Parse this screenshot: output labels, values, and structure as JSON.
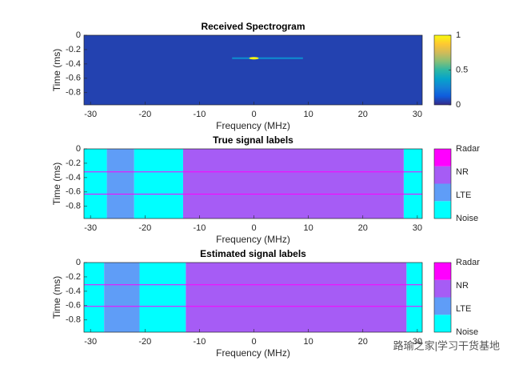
{
  "chart_data": [
    {
      "type": "spectrogram",
      "title": "Received Spectrogram",
      "xlabel": "Frequency (MHz)",
      "ylabel": "Time (ms)",
      "xlim": [
        -31.2,
        30.9
      ],
      "xticks": [
        -30,
        -20,
        -10,
        0,
        10,
        20,
        30
      ],
      "ylim": [
        0,
        -0.97
      ],
      "yticks": [
        0,
        -0.2,
        -0.4,
        -0.6,
        -0.8
      ],
      "zlim": [
        0,
        1
      ],
      "zticks": [
        0,
        0.5,
        1
      ],
      "colormap": [
        "#352a87",
        "#0f5cdd",
        "#1481d6",
        "#06a4ca",
        "#2eb7a4",
        "#87bf77",
        "#d1bb59",
        "#fec832",
        "#f9fb0e"
      ],
      "floor": 0.06,
      "streaks": [
        {
          "x": [
            -4,
            9
          ],
          "y": -0.32,
          "z": 0.3
        }
      ],
      "peaks": [
        {
          "x": 0,
          "y": -0.32,
          "z": 1
        }
      ]
    },
    {
      "type": "label_map",
      "title": "True signal labels",
      "xlabel": "Frequency (MHz)",
      "ylabel": "Time (ms)",
      "xlim": [
        -31.2,
        30.9
      ],
      "xticks": [
        -30,
        -20,
        -10,
        0,
        10,
        20,
        30
      ],
      "ylim": [
        0,
        -0.97
      ],
      "yticks": [
        0,
        -0.2,
        -0.4,
        -0.6,
        -0.8
      ],
      "series": [
        {
          "name": "Noise",
          "color": "#00ffff",
          "spans": [
            [
              -31.2,
              -27
            ],
            [
              -22,
              -13
            ],
            [
              27.5,
              30.9
            ]
          ]
        },
        {
          "name": "LTE",
          "color": "#5f9df7",
          "spans": [
            [
              -27,
              -22
            ]
          ]
        },
        {
          "name": "NR",
          "color": "#a65cf5",
          "spans": [
            [
              -13,
              27.5
            ]
          ]
        },
        {
          "name": "Radar",
          "color": "#ff00ff",
          "spans": [],
          "hlines": [
            -0.32,
            -0.63
          ]
        }
      ]
    },
    {
      "type": "label_map",
      "title": "Estimated signal labels",
      "xlabel": "Frequency (MHz)",
      "ylabel": "Time (ms)",
      "xlim": [
        -31.2,
        30.9
      ],
      "xticks": [
        -30,
        -20,
        -10,
        0,
        10,
        20,
        30
      ],
      "ylim": [
        0,
        -0.97
      ],
      "yticks": [
        0,
        -0.2,
        -0.4,
        -0.6,
        -0.8
      ],
      "series": [
        {
          "name": "Noise",
          "color": "#00ffff",
          "spans": [
            [
              -31.2,
              -27.5
            ],
            [
              -21,
              -12.5
            ],
            [
              28,
              30.9
            ]
          ]
        },
        {
          "name": "LTE",
          "color": "#5f9df7",
          "spans": [
            [
              -27.5,
              -21
            ]
          ]
        },
        {
          "name": "NR",
          "color": "#a65cf5",
          "spans": [
            [
              -12.5,
              28
            ]
          ]
        },
        {
          "name": "Radar",
          "color": "#ff00ff",
          "spans": [],
          "hlines": [
            -0.31,
            -0.61
          ]
        }
      ]
    }
  ],
  "watermark": "路瑜之家|学习干货基地"
}
